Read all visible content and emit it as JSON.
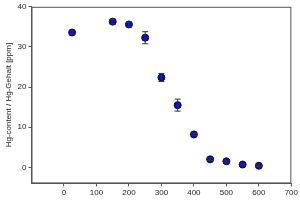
{
  "chart_data": {
    "type": "scatter",
    "y_label": "Hg-content / Hg-Gehalt [ppm]",
    "x": [
      25,
      150,
      200,
      250,
      300,
      350,
      400,
      450,
      500,
      550,
      600
    ],
    "values": [
      33.6,
      36.3,
      35.6,
      32.3,
      22.4,
      15.5,
      8.2,
      2.0,
      1.5,
      0.7,
      0.4
    ],
    "errors": [
      0.4,
      0.6,
      0.6,
      1.5,
      1.0,
      1.5,
      0.3,
      0.3,
      0.3,
      0.2,
      0.2
    ],
    "color": "#0a0ad2",
    "marker": "circle",
    "xlim": [
      -100,
      700
    ],
    "xticks": [
      0,
      100,
      200,
      300,
      400,
      500,
      600,
      700
    ],
    "ylim": [
      -4,
      40
    ],
    "yticks": [
      0,
      10,
      20,
      30,
      40
    ],
    "grid": false
  }
}
